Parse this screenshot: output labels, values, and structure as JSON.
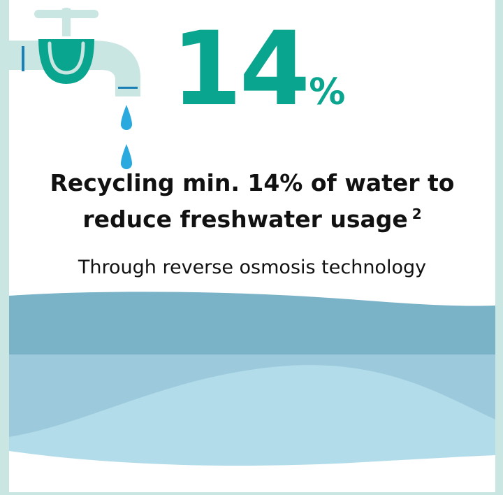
{
  "stat": {
    "number": "14",
    "unit": "%"
  },
  "headline": {
    "line1": "Recycling min. 14% of water to",
    "line2": "reduce freshwater usage",
    "footnote": "2"
  },
  "subtitle": "Through reverse osmosis technology",
  "icons": [
    "water-tap-icon",
    "water-drop-icon"
  ],
  "colors": {
    "background": "#c9e6e3",
    "accent": "#0aa58e",
    "tap_light": "#c9e6e3",
    "drop": "#29a9dd",
    "wave_dark": "#7ab3c8",
    "wave_mid": "#9cc9db",
    "wave_light": "#b2dcea"
  }
}
